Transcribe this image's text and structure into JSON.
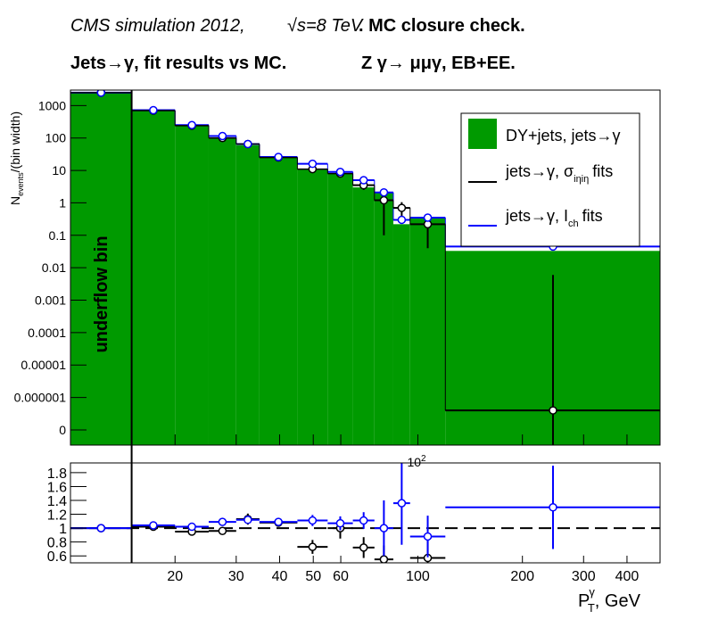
{
  "chart_data": {
    "type": "histogram",
    "title_parts": {
      "left": "CMS simulation 2012,",
      "sqrt": "√s=8 TeV",
      "right": ". MC closure check."
    },
    "subtitle_parts": {
      "left": "Jets→γ, fit results vs MC.",
      "right": "Z  γ→  μμγ, EB+EE."
    },
    "y_label": {
      "main": "N",
      "sub": "events",
      "tail": "/(bin width)"
    },
    "x_label": {
      "main": "P",
      "sup": "γ",
      "sub": "T",
      "tail": ", GeV"
    },
    "annotation": "underflow bin",
    "bins": [
      10,
      15,
      20,
      25,
      30,
      35,
      45,
      55,
      65,
      75,
      85,
      95,
      120,
      500
    ],
    "xlim": [
      10,
      498
    ],
    "log_x": true,
    "ylim": [
      3.4e-08,
      3000
    ],
    "log_y": true,
    "yticks": [
      1000,
      100,
      10,
      1,
      0.1,
      0.01,
      0.001,
      0.0001,
      1e-05,
      1e-06,
      {
        "value": 1e-07,
        "label": "0"
      }
    ],
    "top_xtick": {
      "value": 100,
      "base": "10",
      "exp": "2"
    },
    "xticks": [
      20,
      30,
      40,
      50,
      60,
      100,
      200,
      300,
      400
    ],
    "series": [
      {
        "name": "DY+jets, jets→γ",
        "color": "#009a00",
        "values": [
          2500,
          700,
          240,
          105,
          60,
          25,
          11,
          8,
          3,
          2,
          0.22,
          0.33,
          0.033
        ]
      },
      {
        "name_parts": {
          "main": "jets→γ, σ",
          "sub": "iηiη",
          "tail": "fits"
        },
        "color": "#000000",
        "values": [
          2500,
          700,
          240,
          100,
          65,
          25,
          11,
          8,
          3.5,
          1.2,
          0.7,
          0.22,
          4e-07
        ],
        "errors": [
          0,
          0,
          0,
          0,
          0,
          0,
          0,
          0,
          1,
          1.1,
          0.35,
          0.18,
          0.006
        ]
      },
      {
        "name_parts": {
          "main": "jets→γ, I",
          "sub": "ch",
          "tail": "fits"
        },
        "color": "#0000ff",
        "values": [
          2500,
          720,
          250,
          115,
          65,
          26,
          16,
          9,
          5,
          2.1,
          0.3,
          0.35,
          0.045
        ]
      }
    ],
    "legend": "top-right",
    "ratio": {
      "ylim": [
        0.5,
        1.94
      ],
      "yticks": [
        0.6,
        0.8,
        1,
        1.2,
        1.4,
        1.6,
        1.8
      ],
      "reference_line": 1,
      "series": [
        {
          "color": "#000000",
          "values": [
            1.0,
            1.02,
            0.95,
            0.96,
            1.13,
            1.08,
            0.73,
            1.0,
            0.72,
            0.55,
            null,
            0.57,
            null
          ],
          "errors": [
            0.01,
            0.02,
            0.03,
            0.04,
            0.08,
            0.06,
            0.1,
            0.15,
            0.15,
            0.2,
            null,
            0.35,
            null
          ]
        },
        {
          "color": "#0000ff",
          "values": [
            1.0,
            1.04,
            1.02,
            1.09,
            1.12,
            1.09,
            1.11,
            1.07,
            1.11,
            1.0,
            1.36,
            0.88,
            1.3
          ],
          "errors": [
            0.01,
            0.02,
            0.03,
            0.04,
            0.05,
            0.05,
            0.08,
            0.1,
            0.12,
            0.4,
            0.6,
            0.3,
            0.6
          ]
        }
      ]
    }
  }
}
